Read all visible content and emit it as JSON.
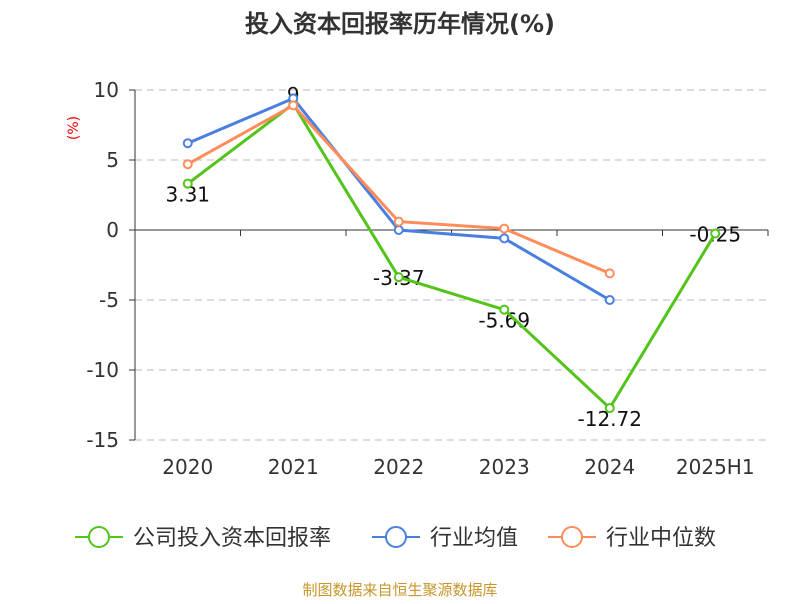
{
  "chart_data": {
    "type": "line",
    "title": "投入资本回报率历年情况(%)",
    "ylabel": "(%)",
    "categories": [
      "2020",
      "2021",
      "2022",
      "2023",
      "2024",
      "2025H1"
    ],
    "ylim": [
      -15,
      10
    ],
    "yticks": [
      10,
      5,
      0,
      -5,
      -10,
      -15
    ],
    "grid": true,
    "legend_position": "bottom",
    "series": [
      {
        "name": "公司投入资本回报率",
        "color": "#52c41a",
        "values": [
          3.31,
          9.0,
          -3.37,
          -5.69,
          -12.72,
          -0.25
        ],
        "labels": [
          "3.31",
          "9",
          "-3.37",
          "-5.69",
          "-12.72",
          "-0.25"
        ]
      },
      {
        "name": "行业均值",
        "color": "#4a7fe0",
        "values": [
          6.2,
          9.4,
          0.0,
          -0.6,
          -5.0,
          null
        ]
      },
      {
        "name": "行业中位数",
        "color": "#ff8c5a",
        "values": [
          4.7,
          8.9,
          0.6,
          0.1,
          -3.1,
          null
        ]
      }
    ]
  },
  "footer": "制图数据来自恒生聚源数据库"
}
